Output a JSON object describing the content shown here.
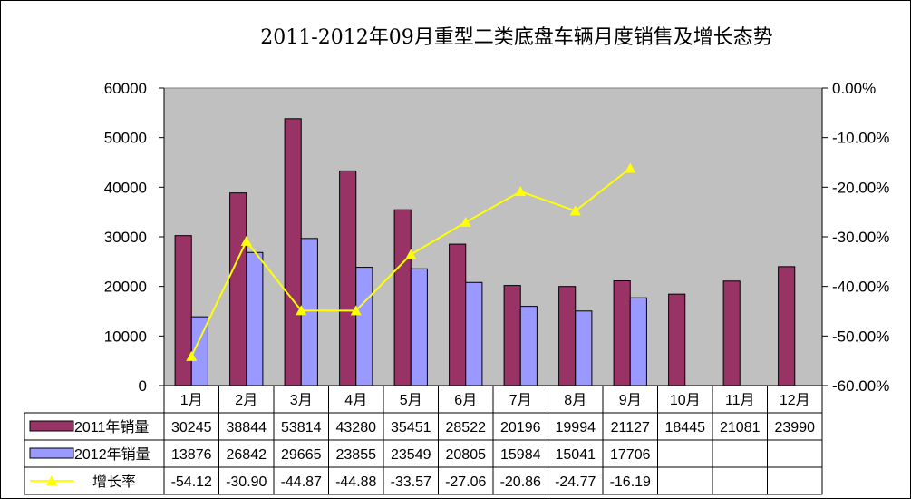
{
  "chart_data": {
    "type": "bar+line",
    "title": "2011-2012年09月重型二类底盘车辆月度销售及增长态势",
    "categories": [
      "1月",
      "2月",
      "3月",
      "4月",
      "5月",
      "6月",
      "7月",
      "8月",
      "9月",
      "10月",
      "11月",
      "12月"
    ],
    "series": [
      {
        "name": "2011年销量",
        "type": "bar",
        "axis": "left",
        "color": "#993366",
        "values": [
          30245,
          38844,
          53814,
          43280,
          35451,
          28522,
          20196,
          19994,
          21127,
          18445,
          21081,
          23990
        ]
      },
      {
        "name": "2012年销量",
        "type": "bar",
        "axis": "left",
        "color": "#9999FF",
        "values": [
          13876,
          26842,
          29665,
          23855,
          23549,
          20805,
          15984,
          15041,
          17706,
          null,
          null,
          null
        ]
      },
      {
        "name": "增长率",
        "type": "line",
        "axis": "right",
        "color": "#FFFF00",
        "marker": "triangle",
        "values": [
          -54.12,
          -30.9,
          -44.87,
          -44.88,
          -33.57,
          -27.06,
          -20.86,
          -24.77,
          -16.19,
          null,
          null,
          null
        ]
      }
    ],
    "left_axis": {
      "range": [
        0,
        60000
      ],
      "ticks": [
        "0",
        "10000",
        "20000",
        "30000",
        "40000",
        "50000",
        "60000"
      ]
    },
    "right_axis": {
      "range": [
        -60,
        0
      ],
      "ticks": [
        "-60.00%",
        "-50.00%",
        "-40.00%",
        "-30.00%",
        "-20.00%",
        "-10.00%",
        "0.00%"
      ]
    },
    "plot_background": "#C0C0C0",
    "grid": false,
    "legend": "data-table"
  }
}
